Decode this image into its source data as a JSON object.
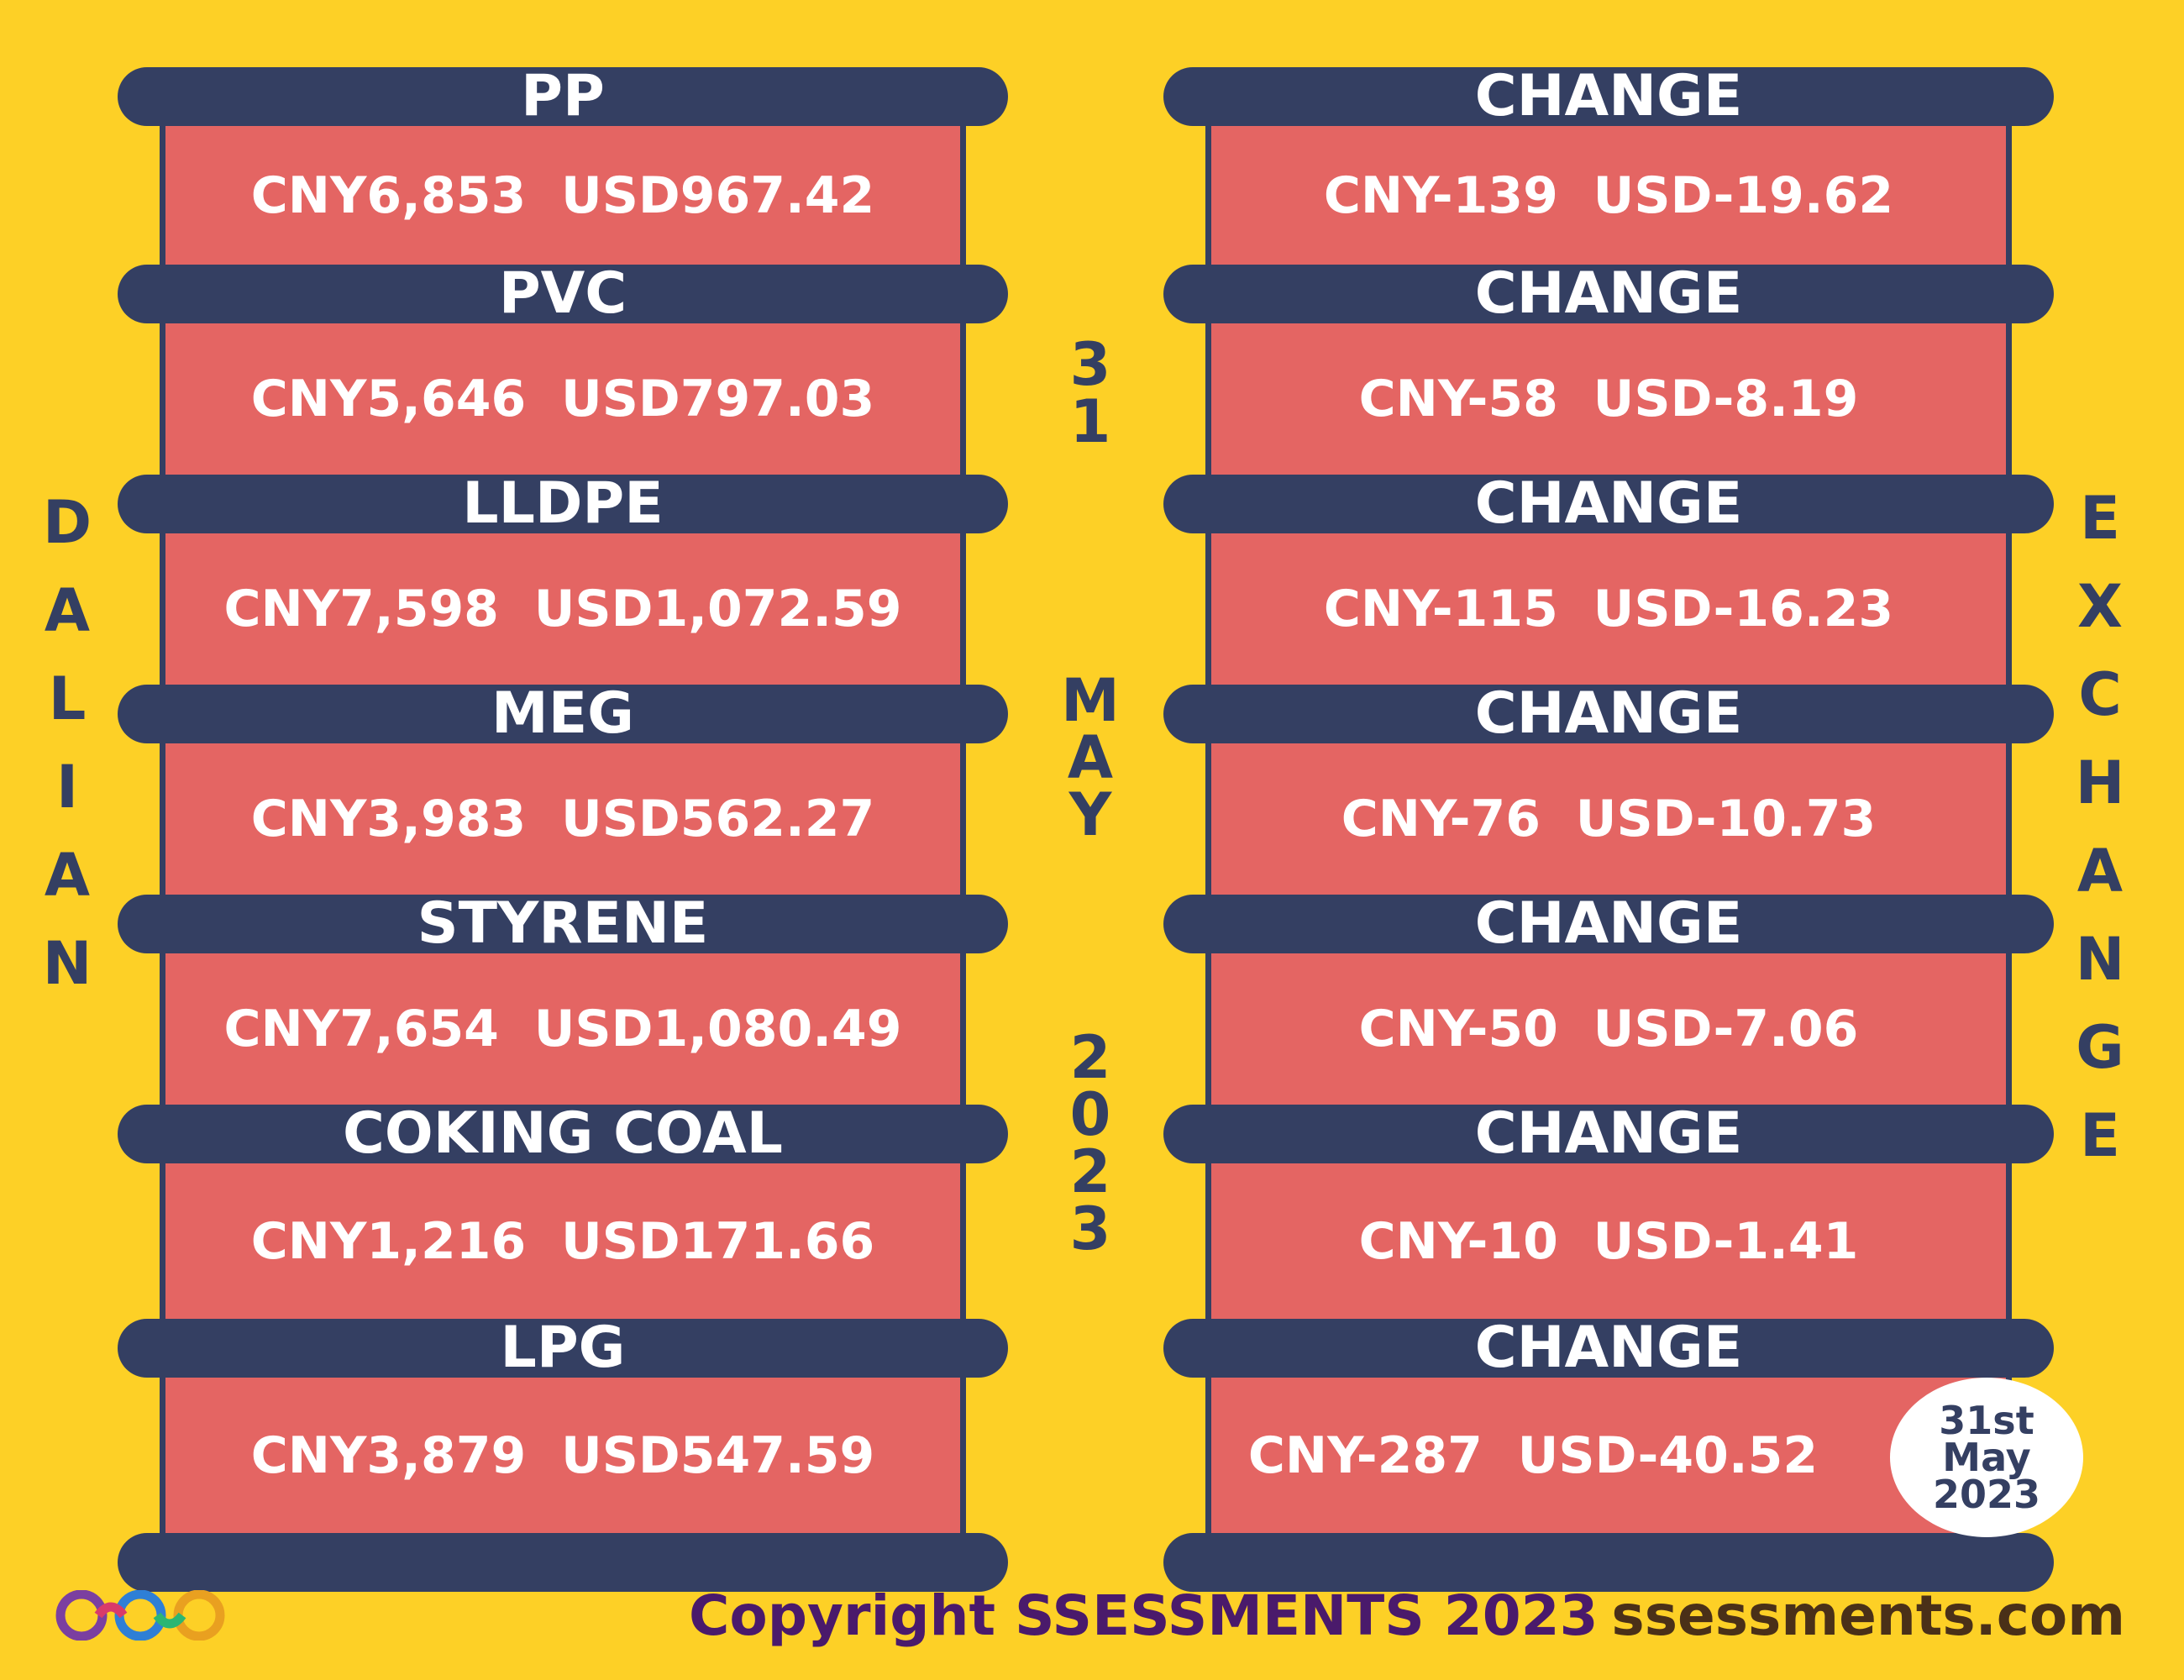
{
  "left_label": [
    "D",
    "A",
    "L",
    "I",
    "A",
    "N"
  ],
  "right_label": [
    "E",
    "X",
    "C",
    "H",
    "A",
    "N",
    "G",
    "E"
  ],
  "center_date": {
    "day": [
      "3",
      "1"
    ],
    "month": [
      "M",
      "A",
      "Y"
    ],
    "year": [
      "2",
      "0",
      "2",
      "3"
    ]
  },
  "rows": [
    {
      "product": "PP",
      "price": "CNY6,853  USD967.42",
      "change_label": "CHANGE",
      "change": "CNY-139  USD-19.62"
    },
    {
      "product": "PVC",
      "price": "CNY5,646  USD797.03",
      "change_label": "CHANGE",
      "change": "CNY-58  USD-8.19"
    },
    {
      "product": "LLDPE",
      "price": "CNY7,598  USD1,072.59",
      "change_label": "CHANGE",
      "change": "CNY-115  USD-16.23"
    },
    {
      "product": "MEG",
      "price": "CNY3,983  USD562.27",
      "change_label": "CHANGE",
      "change": "CNY-76  USD-10.73"
    },
    {
      "product": "STYRENE",
      "price": "CNY7,654  USD1,080.49",
      "change_label": "CHANGE",
      "change": "CNY-50  USD-7.06"
    },
    {
      "product": "COKING COAL",
      "price": "CNY1,216  USD171.66",
      "change_label": "CHANGE",
      "change": "CNY-10  USD-1.41"
    },
    {
      "product": "LPG",
      "price": "CNY3,879  USD547.59",
      "change_label": "CHANGE",
      "change": "CNY-287  USD-40.52"
    }
  ],
  "date_badge": [
    "31st",
    "May",
    "2023"
  ],
  "footer": {
    "copyright": "Copyright SSESSMENTS 2023",
    "website": "ssessments.com"
  },
  "colors": {
    "background": "#fdd026",
    "bar": "#343f62",
    "cell": "#e46563",
    "text": "#ffffff"
  },
  "logo_icon": "infinity-logo-icon"
}
